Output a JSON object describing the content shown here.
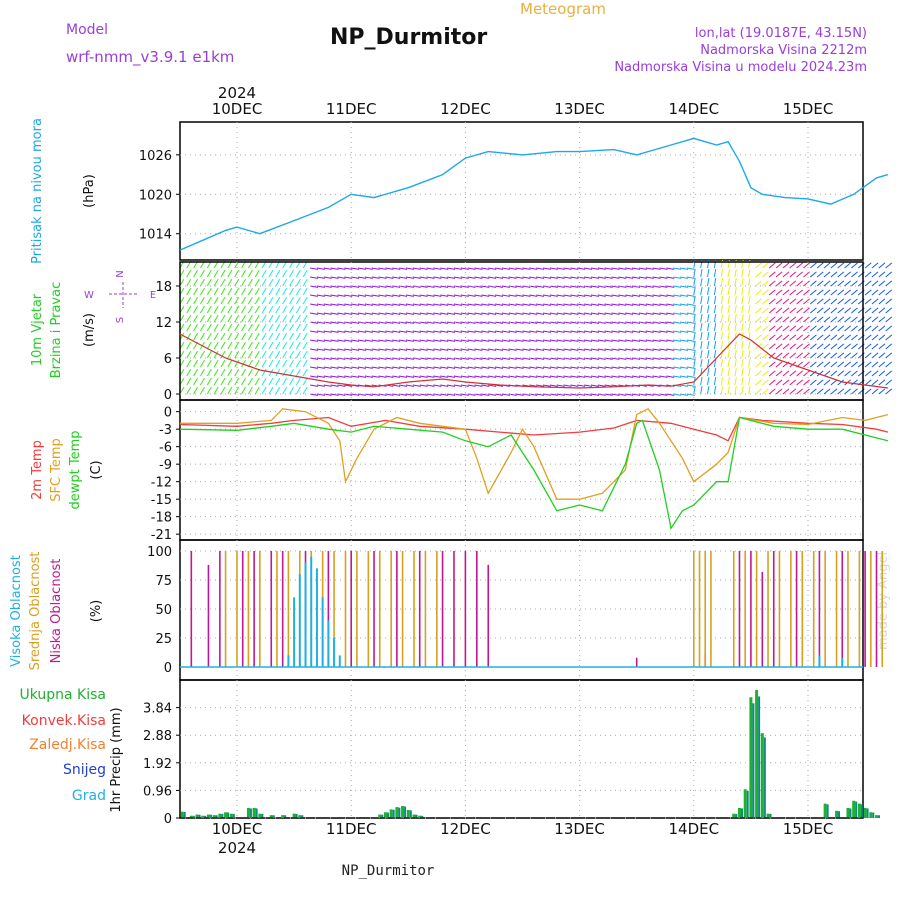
{
  "header": {
    "title": "NP_Durmitor",
    "subtitle": "Meteogram",
    "model_label": "Model",
    "model_name": "wrf-nmm_v3.9.1  e1km",
    "location": "lon,lat (19.0187E, 43.15N)",
    "elevation": "Nadmorska Visina 2212m",
    "model_elevation": "Nadmorska Visina u modelu 2024.23m",
    "year_top": "2024",
    "year_bottom": "2024",
    "footer": "NP_Durmitor",
    "credit": "made by Angel"
  },
  "colors": {
    "pressure": "#1ea8e8",
    "temp2m": "#f03c3c",
    "sfc": "#e0a020",
    "dewpt": "#20d020",
    "high_cloud": "#20b0e0",
    "mid_cloud": "#d8a020",
    "low_cloud": "#c01890",
    "precip_total": "#20b030",
    "precip_teal": "#108888",
    "precip_blue": "#2040d0",
    "purple": "#9a3ed8"
  },
  "chart_data": [
    {
      "type": "line",
      "panel": "pressure",
      "ylabel_title": "Pritisak na nivou mora",
      "unit": "(hPa)",
      "x": [
        "10DEC",
        "11DEC",
        "12DEC",
        "13DEC",
        "14DEC",
        "15DEC"
      ],
      "yticks": [
        1014,
        1020,
        1026
      ],
      "ylim": [
        1010,
        1031
      ],
      "series": [
        {
          "color_key": "pressure",
          "points": [
            [
              -0.5,
              1011.5
            ],
            [
              -0.3,
              1013
            ],
            [
              -0.1,
              1014.5
            ],
            [
              0,
              1015
            ],
            [
              0.2,
              1014
            ],
            [
              0.5,
              1016
            ],
            [
              0.8,
              1018
            ],
            [
              1.0,
              1020
            ],
            [
              1.2,
              1019.5
            ],
            [
              1.5,
              1021
            ],
            [
              1.8,
              1023
            ],
            [
              2.0,
              1025.5
            ],
            [
              2.2,
              1026.5
            ],
            [
              2.5,
              1026
            ],
            [
              2.8,
              1026.5
            ],
            [
              3.0,
              1026.5
            ],
            [
              3.3,
              1026.8
            ],
            [
              3.5,
              1026
            ],
            [
              3.8,
              1027.5
            ],
            [
              4.0,
              1028.5
            ],
            [
              4.2,
              1027.5
            ],
            [
              4.3,
              1028
            ],
            [
              4.4,
              1025
            ],
            [
              4.5,
              1021
            ],
            [
              4.6,
              1020
            ],
            [
              4.8,
              1019.5
            ],
            [
              5.0,
              1019.3
            ],
            [
              5.2,
              1018.5
            ],
            [
              5.4,
              1020
            ],
            [
              5.6,
              1022.5
            ],
            [
              5.7,
              1023
            ]
          ]
        }
      ]
    },
    {
      "type": "line",
      "panel": "wind",
      "ylabel_title": "10m Vjetar",
      "ylabel_title2": "Brzina i Pravac",
      "unit": "(m/s)",
      "compass": [
        "N",
        "W",
        "E",
        "S"
      ],
      "yticks": [
        0,
        6,
        12,
        18
      ],
      "ylim": [
        -1,
        22
      ],
      "series": [
        {
          "name": "speed",
          "color_key": "temp2m",
          "points": [
            [
              -0.5,
              10
            ],
            [
              -0.3,
              8
            ],
            [
              -0.1,
              6
            ],
            [
              0.2,
              4
            ],
            [
              0.5,
              3
            ],
            [
              0.8,
              2
            ],
            [
              1.0,
              1.5
            ],
            [
              1.2,
              1.2
            ],
            [
              1.5,
              2
            ],
            [
              1.8,
              2.5
            ],
            [
              2.0,
              2
            ],
            [
              2.3,
              1.5
            ],
            [
              2.6,
              1.2
            ],
            [
              3.0,
              1.0
            ],
            [
              3.3,
              1.2
            ],
            [
              3.6,
              1.5
            ],
            [
              3.8,
              1.3
            ],
            [
              4.0,
              2
            ],
            [
              4.2,
              6
            ],
            [
              4.4,
              10
            ],
            [
              4.5,
              9
            ],
            [
              4.7,
              6
            ],
            [
              5.0,
              4
            ],
            [
              5.3,
              2
            ],
            [
              5.5,
              1.5
            ],
            [
              5.7,
              1
            ]
          ]
        }
      ]
    },
    {
      "type": "line",
      "panel": "temperature",
      "ylabel_title": "2m Temp",
      "ylabel_title2": "SFC Temp",
      "ylabel_title3": "dewpt Temp",
      "unit": "(C)",
      "yticks": [
        0,
        -3,
        -6,
        -9,
        -12,
        -15,
        -18,
        -21
      ],
      "ylim": [
        -22,
        2
      ],
      "series": [
        {
          "name": "2m Temp",
          "color_key": "temp2m",
          "points": [
            [
              -0.5,
              -2.2
            ],
            [
              0,
              -2.5
            ],
            [
              0.3,
              -2
            ],
            [
              0.5,
              -1.5
            ],
            [
              0.8,
              -1.0
            ],
            [
              1.0,
              -2.5
            ],
            [
              1.3,
              -1.5
            ],
            [
              1.6,
              -2.5
            ],
            [
              2.0,
              -3
            ],
            [
              2.3,
              -3.5
            ],
            [
              2.6,
              -4
            ],
            [
              3.0,
              -3.5
            ],
            [
              3.3,
              -2.8
            ],
            [
              3.5,
              -1.5
            ],
            [
              3.8,
              -2
            ],
            [
              4.0,
              -3
            ],
            [
              4.2,
              -4
            ],
            [
              4.3,
              -5
            ],
            [
              4.4,
              -1.0
            ],
            [
              4.6,
              -1.5
            ],
            [
              5.0,
              -2
            ],
            [
              5.3,
              -2.2
            ],
            [
              5.6,
              -3
            ],
            [
              5.7,
              -3.5
            ]
          ]
        },
        {
          "name": "SFC Temp",
          "color_key": "sfc",
          "points": [
            [
              -0.5,
              -2
            ],
            [
              0,
              -2
            ],
            [
              0.3,
              -1.5
            ],
            [
              0.4,
              0.5
            ],
            [
              0.6,
              0
            ],
            [
              0.8,
              -2
            ],
            [
              0.9,
              -5
            ],
            [
              0.95,
              -12
            ],
            [
              1.05,
              -8
            ],
            [
              1.2,
              -3
            ],
            [
              1.4,
              -1
            ],
            [
              1.6,
              -2
            ],
            [
              1.8,
              -2.5
            ],
            [
              2.0,
              -3
            ],
            [
              2.1,
              -8
            ],
            [
              2.2,
              -14
            ],
            [
              2.4,
              -7
            ],
            [
              2.5,
              -3
            ],
            [
              2.6,
              -6
            ],
            [
              2.8,
              -15
            ],
            [
              3.0,
              -15
            ],
            [
              3.2,
              -14
            ],
            [
              3.4,
              -10
            ],
            [
              3.5,
              -0.5
            ],
            [
              3.6,
              0.5
            ],
            [
              3.7,
              -2
            ],
            [
              3.9,
              -8
            ],
            [
              4.0,
              -12
            ],
            [
              4.2,
              -9
            ],
            [
              4.3,
              -7
            ],
            [
              4.4,
              -1
            ],
            [
              4.7,
              -2
            ],
            [
              5.0,
              -2.2
            ],
            [
              5.3,
              -1
            ],
            [
              5.5,
              -1.5
            ],
            [
              5.7,
              -0.5
            ]
          ]
        },
        {
          "name": "dewpt Temp",
          "color_key": "dewpt",
          "points": [
            [
              -0.5,
              -3
            ],
            [
              0,
              -3.2
            ],
            [
              0.3,
              -2.5
            ],
            [
              0.5,
              -2
            ],
            [
              0.8,
              -3
            ],
            [
              1.0,
              -3.5
            ],
            [
              1.2,
              -2.5
            ],
            [
              1.5,
              -3
            ],
            [
              1.8,
              -3.5
            ],
            [
              2.0,
              -5
            ],
            [
              2.2,
              -6
            ],
            [
              2.4,
              -4
            ],
            [
              2.6,
              -10
            ],
            [
              2.8,
              -17
            ],
            [
              3.0,
              -16
            ],
            [
              3.2,
              -17
            ],
            [
              3.4,
              -9
            ],
            [
              3.5,
              -2
            ],
            [
              3.55,
              -1.5
            ],
            [
              3.7,
              -10
            ],
            [
              3.8,
              -20
            ],
            [
              3.9,
              -17
            ],
            [
              4.0,
              -16
            ],
            [
              4.2,
              -12
            ],
            [
              4.3,
              -12
            ],
            [
              4.4,
              -1
            ],
            [
              4.7,
              -2.5
            ],
            [
              5.0,
              -3
            ],
            [
              5.3,
              -3
            ],
            [
              5.6,
              -4.5
            ],
            [
              5.7,
              -5
            ]
          ]
        }
      ]
    },
    {
      "type": "bar",
      "panel": "cloud",
      "ylabel_title": "Visoka Oblacnost",
      "ylabel_title2": "Srednja Oblacnost",
      "ylabel_title3": "Niska  Oblacnost",
      "unit": "(%)",
      "yticks": [
        0,
        25,
        50,
        75,
        100
      ],
      "ylim": [
        0,
        100
      ],
      "low_cloud_bars": [
        [
          -0.4,
          100
        ],
        [
          -0.25,
          88
        ],
        [
          -0.15,
          100
        ],
        [
          0.05,
          100
        ],
        [
          0.15,
          100
        ],
        [
          0.3,
          100
        ],
        [
          0.4,
          100
        ],
        [
          0.6,
          100
        ],
        [
          0.8,
          100
        ],
        [
          1.0,
          100
        ],
        [
          1.2,
          100
        ],
        [
          1.4,
          100
        ],
        [
          1.6,
          100
        ],
        [
          1.8,
          100
        ],
        [
          1.9,
          100
        ],
        [
          2.0,
          100
        ],
        [
          2.1,
          100
        ],
        [
          2.2,
          88
        ],
        [
          3.5,
          8
        ],
        [
          4.1,
          12
        ],
        [
          4.4,
          100
        ],
        [
          4.5,
          100
        ],
        [
          4.6,
          82
        ],
        [
          4.7,
          100
        ],
        [
          4.9,
          100
        ],
        [
          5.1,
          100
        ],
        [
          5.3,
          100
        ],
        [
          5.5,
          100
        ],
        [
          5.6,
          100
        ]
      ],
      "mid_cloud_bars": [
        [
          -0.1,
          100
        ],
        [
          0.0,
          100
        ],
        [
          0.1,
          100
        ],
        [
          0.2,
          100
        ],
        [
          0.35,
          100
        ],
        [
          0.45,
          100
        ],
        [
          0.55,
          100
        ],
        [
          0.65,
          100
        ],
        [
          0.75,
          100
        ],
        [
          0.85,
          100
        ],
        [
          0.95,
          100
        ],
        [
          1.05,
          100
        ],
        [
          1.15,
          100
        ],
        [
          1.25,
          100
        ],
        [
          1.35,
          100
        ],
        [
          1.45,
          100
        ],
        [
          1.55,
          100
        ],
        [
          1.65,
          100
        ],
        [
          1.75,
          100
        ],
        [
          4.0,
          100
        ],
        [
          4.05,
          100
        ],
        [
          4.1,
          100
        ],
        [
          4.15,
          100
        ],
        [
          4.35,
          100
        ],
        [
          4.45,
          100
        ],
        [
          4.55,
          100
        ],
        [
          4.65,
          100
        ],
        [
          4.75,
          100
        ],
        [
          4.85,
          100
        ],
        [
          4.95,
          100
        ],
        [
          5.05,
          100
        ],
        [
          5.15,
          100
        ],
        [
          5.25,
          100
        ],
        [
          5.35,
          100
        ],
        [
          5.45,
          100
        ],
        [
          5.55,
          100
        ],
        [
          5.65,
          100
        ]
      ],
      "high_cloud_bars": [
        [
          0.45,
          10
        ],
        [
          0.5,
          60
        ],
        [
          0.55,
          80
        ],
        [
          0.6,
          90
        ],
        [
          0.65,
          95
        ],
        [
          0.7,
          85
        ],
        [
          0.75,
          60
        ],
        [
          0.8,
          40
        ],
        [
          0.85,
          25
        ],
        [
          0.9,
          10
        ],
        [
          5.1,
          10
        ],
        [
          5.3,
          8
        ]
      ]
    },
    {
      "type": "bar",
      "panel": "precip",
      "ylabel_title": "1hr Precip (mm)",
      "legend": [
        "Ukupna  Kisa",
        "Konvek.Kisa",
        "Zaledj.Kisa",
        "Snijeg",
        "Grad"
      ],
      "yticks": [
        0,
        0.96,
        1.92,
        2.88,
        3.84
      ],
      "ylim": [
        0,
        4.8
      ],
      "bars": [
        [
          -0.48,
          0.22
        ],
        [
          -0.4,
          0.08
        ],
        [
          -0.35,
          0.12
        ],
        [
          -0.3,
          0.08
        ],
        [
          -0.25,
          0.12
        ],
        [
          -0.2,
          0.1
        ],
        [
          -0.15,
          0.15
        ],
        [
          -0.1,
          0.2
        ],
        [
          -0.05,
          0.15
        ],
        [
          0.1,
          0.35
        ],
        [
          0.15,
          0.35
        ],
        [
          0.2,
          0.15
        ],
        [
          0.3,
          0.1
        ],
        [
          0.4,
          0.1
        ],
        [
          0.5,
          0.15
        ],
        [
          0.55,
          0.1
        ],
        [
          1.25,
          0.12
        ],
        [
          1.3,
          0.2
        ],
        [
          1.35,
          0.3
        ],
        [
          1.4,
          0.38
        ],
        [
          1.45,
          0.42
        ],
        [
          1.5,
          0.28
        ],
        [
          1.55,
          0.12
        ],
        [
          1.6,
          0.08
        ],
        [
          4.35,
          0.15
        ],
        [
          4.4,
          0.35
        ],
        [
          4.45,
          1.0
        ],
        [
          4.5,
          4.2
        ],
        [
          4.55,
          4.45
        ],
        [
          4.6,
          2.95
        ],
        [
          4.65,
          0.15
        ],
        [
          5.15,
          0.5
        ],
        [
          5.25,
          0.25
        ],
        [
          5.35,
          0.35
        ],
        [
          5.4,
          0.6
        ],
        [
          5.45,
          0.5
        ],
        [
          5.5,
          0.35
        ],
        [
          5.55,
          0.2
        ],
        [
          5.6,
          0.1
        ]
      ],
      "x": [
        "10DEC",
        "11DEC",
        "12DEC",
        "13DEC",
        "14DEC",
        "15DEC"
      ]
    }
  ]
}
